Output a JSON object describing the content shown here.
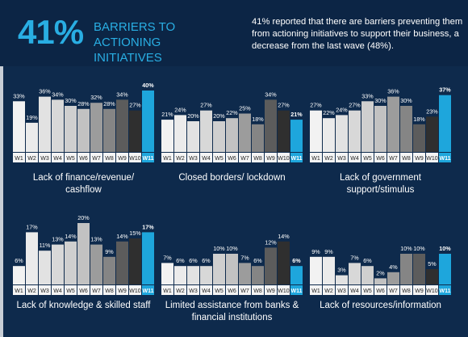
{
  "header": {
    "big_value": "41%",
    "title": "BARRIERS TO ACTIONING INITIATIVES",
    "description": "41% reported that there are barriers preventing them from actioning initiatives to support their business, a decrease from the last wave (48%)."
  },
  "colors": {
    "background": "#0e2a4c",
    "accent": "#29aee3",
    "bar_w1": "#f2f2f2",
    "bar_w2": "#ebebeb",
    "bar_w3": "#e2e2e2",
    "bar_w4": "#d8d8d8",
    "bar_w5": "#cfcfcf",
    "bar_w6": "#c2c2c2",
    "bar_w7": "#9c9c9c",
    "bar_w8": "#858585",
    "bar_w9": "#5c5c5c",
    "bar_w10": "#2f2f2f",
    "bar_w11": "#1ea6dc"
  },
  "chart_data": [
    {
      "type": "bar",
      "title": "Lack of finance/revenue/ cashflow",
      "categories": [
        "W1",
        "W2",
        "W3",
        "W4",
        "W5",
        "W6",
        "W7",
        "W8",
        "W9",
        "W10",
        "W11"
      ],
      "values": [
        33,
        19,
        36,
        34,
        30,
        28,
        32,
        28,
        34,
        27,
        40
      ],
      "labels": [
        "33%",
        "19%",
        "36%",
        "34%",
        "30%",
        "28%",
        "32%",
        "28%",
        "34%",
        "27%",
        "40%"
      ],
      "ylim": [
        0,
        40
      ]
    },
    {
      "type": "bar",
      "title": "Closed borders/ lockdown",
      "categories": [
        "W1",
        "W2",
        "W3",
        "W4",
        "W5",
        "W6",
        "W7",
        "W8",
        "W9",
        "W10",
        "W11"
      ],
      "values": [
        21,
        24,
        20,
        27,
        20,
        22,
        25,
        18,
        34,
        27,
        21
      ],
      "labels": [
        "21%",
        "24%",
        "20%",
        "27%",
        "20%",
        "22%",
        "25%",
        "18%",
        "34%",
        "27%",
        "21%"
      ],
      "ylim": [
        0,
        40
      ]
    },
    {
      "type": "bar",
      "title": "Lack of government support/stimulus",
      "categories": [
        "W1",
        "W2",
        "W3",
        "W4",
        "W5",
        "W6",
        "W7",
        "W8",
        "W9",
        "W10",
        "W11"
      ],
      "values": [
        27,
        22,
        24,
        27,
        33,
        30,
        36,
        30,
        18,
        23,
        37
      ],
      "labels": [
        "27%",
        "22%",
        "24%",
        "27%",
        "33%",
        "30%",
        "36%",
        "30%",
        "18%",
        "23%",
        "37%"
      ],
      "ylim": [
        0,
        40
      ]
    },
    {
      "type": "bar",
      "title": "Lack of knowledge & skilled staff",
      "categories": [
        "W1",
        "W2",
        "W3",
        "W4",
        "W5",
        "W6",
        "W7",
        "W8",
        "W9",
        "W10",
        "W11"
      ],
      "values": [
        6,
        17,
        11,
        13,
        14,
        20,
        13,
        9,
        14,
        15,
        17
      ],
      "labels": [
        "6%",
        "17%",
        "11%",
        "13%",
        "14%",
        "20%",
        "13%",
        "9%",
        "14%",
        "15%",
        "17%"
      ],
      "ylim": [
        0,
        20
      ]
    },
    {
      "type": "bar",
      "title": "Limited assistance from banks & financial institutions",
      "categories": [
        "W1",
        "W2",
        "W3",
        "W4",
        "W5",
        "W6",
        "W7",
        "W8",
        "W9",
        "W10",
        "W11"
      ],
      "values": [
        7,
        6,
        6,
        6,
        10,
        10,
        7,
        6,
        12,
        14,
        6
      ],
      "labels": [
        "7%",
        "6%",
        "6%",
        "6%",
        "10%",
        "10%",
        "7%",
        "6%",
        "12%",
        "14%",
        "6%"
      ],
      "ylim": [
        0,
        20
      ]
    },
    {
      "type": "bar",
      "title": "Lack of resources/information",
      "categories": [
        "W1",
        "W2",
        "W3",
        "W4",
        "W5",
        "W6",
        "W7",
        "W8",
        "W9",
        "W10",
        "W11"
      ],
      "values": [
        9,
        9,
        3,
        7,
        6,
        2,
        4,
        10,
        10,
        5,
        10
      ],
      "labels": [
        "9%",
        "9%",
        "3%",
        "7%",
        "6%",
        "2%",
        "4%",
        "10%",
        "10%",
        "5%",
        "10%"
      ],
      "ylim": [
        0,
        20
      ]
    }
  ]
}
